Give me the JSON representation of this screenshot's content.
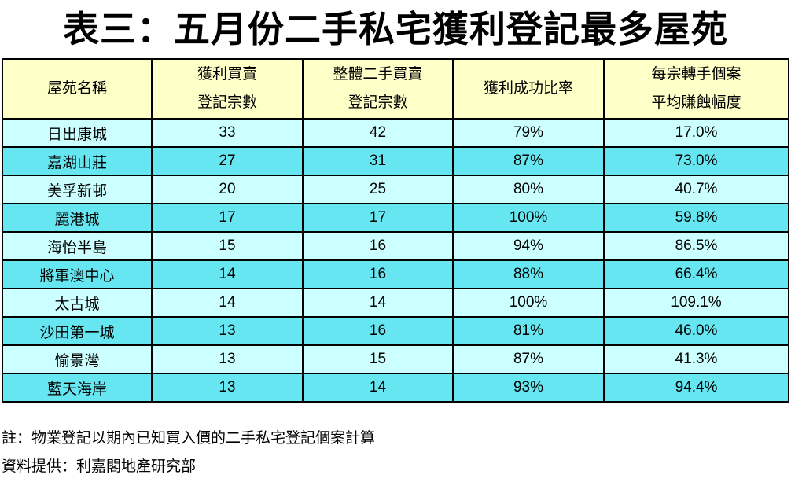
{
  "title": "表三：五月份二手私宅獲利登記最多屋苑",
  "table": {
    "headers": [
      {
        "line1": "屋苑名稱",
        "line2": ""
      },
      {
        "line1": "獲利買賣",
        "line2": "登記宗數"
      },
      {
        "line1": "整體二手買賣",
        "line2": "登記宗數"
      },
      {
        "line1": "獲利成功比率",
        "line2": ""
      },
      {
        "line1": "每宗轉手個案",
        "line2": "平均賺蝕幅度"
      }
    ],
    "rows": [
      [
        "日出康城",
        "33",
        "42",
        "79%",
        "17.0%"
      ],
      [
        "嘉湖山莊",
        "27",
        "31",
        "87%",
        "73.0%"
      ],
      [
        "美孚新邨",
        "20",
        "25",
        "80%",
        "40.7%"
      ],
      [
        "麗港城",
        "17",
        "17",
        "100%",
        "59.8%"
      ],
      [
        "海怡半島",
        "15",
        "16",
        "94%",
        "86.5%"
      ],
      [
        "將軍澳中心",
        "14",
        "16",
        "88%",
        "66.4%"
      ],
      [
        "太古城",
        "14",
        "14",
        "100%",
        "109.1%"
      ],
      [
        "沙田第一城",
        "13",
        "16",
        "81%",
        "46.0%"
      ],
      [
        "愉景灣",
        "13",
        "15",
        "87%",
        "41.3%"
      ],
      [
        "藍天海岸",
        "13",
        "14",
        "93%",
        "94.4%"
      ]
    ]
  },
  "notes": {
    "note": "註：物業登記以期內已知買入價的二手私宅登記個案計算",
    "source": "資料提供：利嘉閣地產研究部"
  },
  "colors": {
    "header_bg": "#ffffc8",
    "row_light": "#ccffff",
    "row_dark": "#66e6f0"
  }
}
